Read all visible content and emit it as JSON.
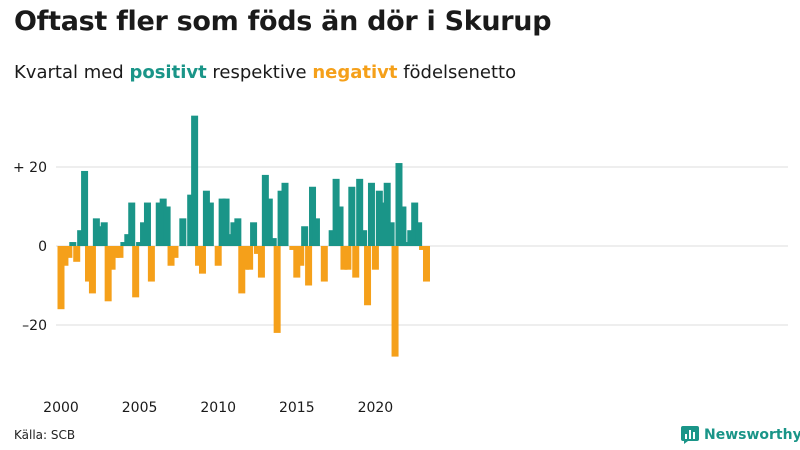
{
  "title": "Oftast fler som föds än dör i Skurup",
  "subtitle": {
    "prefix": "Kvartal med ",
    "positive_word": "positivt",
    "middle": " respektive ",
    "negative_word": "negativt",
    "suffix": " födelsenetto"
  },
  "source": "Källa: SCB",
  "brand": "Newsworthy",
  "colors": {
    "positive": "#1a9588",
    "negative": "#f5a01a",
    "grid": "#dddddd",
    "text": "#1a1a1a"
  },
  "icons": {
    "brand": "bar-chart-logo-icon"
  },
  "chart_data": {
    "type": "bar",
    "title": "Oftast fler som föds än dör i Skurup",
    "subtitle": "Kvartal med positivt respektive negativt födelsenetto",
    "x_tick_labels": [
      "2000",
      "2005",
      "2010",
      "2015",
      "2020"
    ],
    "y_tick_labels": [
      "+ 20",
      "0",
      "–20"
    ],
    "y_ticks": [
      20,
      0,
      -20
    ],
    "ylim": [
      -30,
      34
    ],
    "grid": true,
    "categories": [
      "2000 K1",
      "2000 K2",
      "2000 K3",
      "2000 K4",
      "2001 K1",
      "2001 K2",
      "2001 K3",
      "2001 K4",
      "2002 K1",
      "2002 K2",
      "2002 K3",
      "2002 K4",
      "2003 K1",
      "2003 K2",
      "2003 K3",
      "2003 K4",
      "2004 K1",
      "2004 K2",
      "2004 K3",
      "2004 K4",
      "2005 K1",
      "2005 K2",
      "2005 K3",
      "2005 K4",
      "2006 K1",
      "2006 K2",
      "2006 K3",
      "2006 K4",
      "2007 K1",
      "2007 K2",
      "2007 K3",
      "2007 K4",
      "2008 K1",
      "2008 K2",
      "2008 K3",
      "2008 K4",
      "2009 K1",
      "2009 K2",
      "2009 K3",
      "2009 K4",
      "2010 K1",
      "2010 K2",
      "2010 K3",
      "2010 K4",
      "2011 K1",
      "2011 K2",
      "2011 K3",
      "2011 K4",
      "2012 K1",
      "2012 K2",
      "2012 K3",
      "2012 K4",
      "2013 K1",
      "2013 K2",
      "2013 K3",
      "2013 K4",
      "2014 K1",
      "2014 K2",
      "2014 K3",
      "2014 K4",
      "2015 K1",
      "2015 K2",
      "2015 K3",
      "2015 K4",
      "2016 K1",
      "2016 K2",
      "2016 K3",
      "2016 K4",
      "2017 K1",
      "2017 K2",
      "2017 K3",
      "2017 K4",
      "2018 K1",
      "2018 K2",
      "2018 K3",
      "2018 K4",
      "2019 K1",
      "2019 K2",
      "2019 K3",
      "2019 K4",
      "2020 K1",
      "2020 K2",
      "2020 K3",
      "2020 K4",
      "2021 K1",
      "2021 K2",
      "2021 K3",
      "2021 K4",
      "2022 K1",
      "2022 K2",
      "2022 K3",
      "2022 K4",
      "2023 K1",
      "2023 K2",
      "2023 K3",
      "2023 K4"
    ],
    "values": [
      -16,
      -5,
      -3,
      1,
      -4,
      4,
      19,
      -9,
      -12,
      7,
      5,
      6,
      -14,
      -6,
      -3,
      -3,
      1,
      3,
      11,
      -13,
      1,
      6,
      11,
      -9,
      0,
      11,
      12,
      10,
      -5,
      -3,
      0,
      7,
      0,
      13,
      33,
      -5,
      -7,
      14,
      11,
      0,
      -5,
      12,
      12,
      3,
      6,
      7,
      -12,
      -6,
      -6,
      6,
      -2,
      -8,
      18,
      12,
      2,
      -22,
      14,
      16,
      0,
      -1,
      -8,
      -5,
      5,
      -10,
      15,
      7,
      0,
      -9,
      0,
      4,
      17,
      10,
      -6,
      -6,
      15,
      -8,
      17,
      4,
      -15,
      16,
      -6,
      14,
      11,
      16,
      6,
      -28,
      21,
      10,
      1,
      4,
      11,
      6,
      -1,
      -9,
      0,
      0
    ]
  }
}
